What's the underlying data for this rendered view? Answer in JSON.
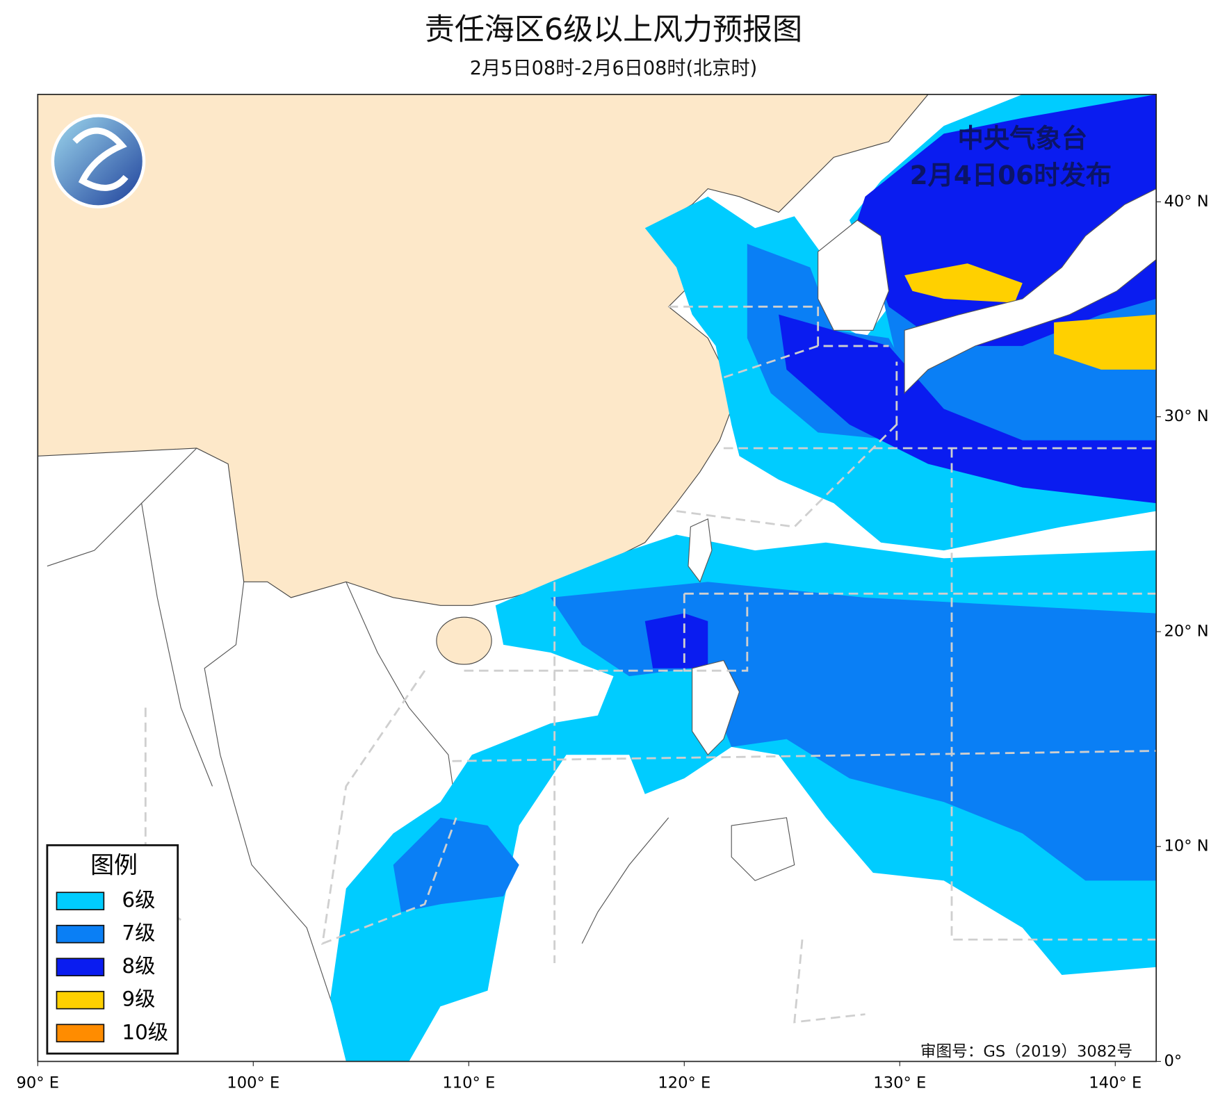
{
  "title": "责任海区6级以上风力预报图",
  "subtitle": "2月5日08时-2月6日08时(北京时)",
  "issuer": {
    "agency": "中央气象台",
    "issued": "2月4日06时发布"
  },
  "legend": {
    "title": "图例",
    "items": [
      {
        "label": "6级",
        "color": "#00ccff"
      },
      {
        "label": "7级",
        "color": "#0a7ff5"
      },
      {
        "label": "8级",
        "color": "#0a1cf0"
      },
      {
        "label": "9级",
        "color": "#ffd000"
      },
      {
        "label": "10级",
        "color": "#ff8c00"
      }
    ]
  },
  "axes": {
    "xlim": [
      90,
      141.9
    ],
    "ylim": [
      0,
      45
    ],
    "xticks": [
      {
        "value": 90,
        "label": "90° E"
      },
      {
        "value": 100,
        "label": "100° E"
      },
      {
        "value": 110,
        "label": "110° E"
      },
      {
        "value": 120,
        "label": "120° E"
      },
      {
        "value": 130,
        "label": "130° E"
      },
      {
        "value": 140,
        "label": "140° E"
      }
    ],
    "yticks": [
      {
        "value": 0,
        "label": "0°"
      },
      {
        "value": 10,
        "label": "10° N"
      },
      {
        "value": 20,
        "label": "20° N"
      },
      {
        "value": 30,
        "label": "30° N"
      },
      {
        "value": 40,
        "label": "40° N"
      }
    ]
  },
  "approval_number": "审图号：GS（2019）3082号"
}
